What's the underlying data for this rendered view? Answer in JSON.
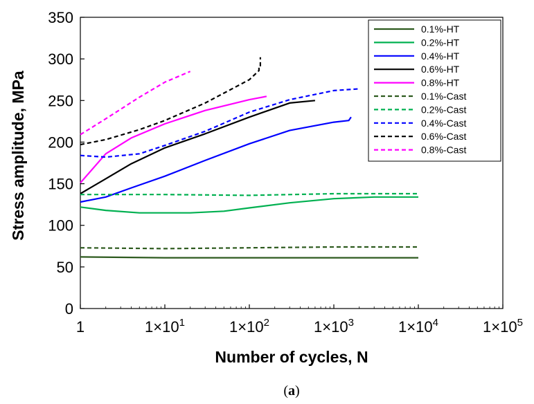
{
  "caption": {
    "open": "(",
    "letter": "a",
    "close": ")"
  },
  "chart_data": {
    "type": "line",
    "xlabel": "Number of cycles, N",
    "ylabel": "Stress amplitude, MPa",
    "xscale": "log",
    "xlim": [
      1,
      100000
    ],
    "ylim": [
      0,
      350
    ],
    "x_tick_labels": [
      "1",
      "1×10",
      "1×10",
      "1×10",
      "1×10",
      "1×10"
    ],
    "x_tick_exponents": [
      "",
      "1",
      "2",
      "3",
      "4",
      "5"
    ],
    "y_ticks": [
      0,
      50,
      100,
      150,
      200,
      250,
      300,
      350
    ],
    "grid": false,
    "legend_position": "top-right",
    "series": [
      {
        "name": "0.1%-HT",
        "color": "#2d5a1e",
        "dash": "solid",
        "x": [
          1,
          10,
          100,
          1000,
          10000
        ],
        "y": [
          62,
          61,
          61,
          61,
          61
        ]
      },
      {
        "name": "0.2%-HT",
        "color": "#00b050",
        "dash": "solid",
        "x": [
          1,
          2,
          5,
          20,
          50,
          100,
          300,
          1000,
          3000,
          10000
        ],
        "y": [
          122,
          118,
          115,
          115,
          117,
          121,
          127,
          132,
          134,
          134
        ]
      },
      {
        "name": "0.4%-HT",
        "color": "#0000ff",
        "dash": "solid",
        "x": [
          1,
          2,
          4,
          10,
          30,
          100,
          300,
          1000,
          1500,
          1600
        ],
        "y": [
          128,
          134,
          145,
          159,
          178,
          198,
          214,
          224,
          226,
          230
        ]
      },
      {
        "name": "0.6%-HT",
        "color": "#000000",
        "dash": "solid",
        "x": [
          1,
          2,
          4,
          10,
          30,
          100,
          300,
          600
        ],
        "y": [
          138,
          156,
          174,
          193,
          210,
          230,
          247,
          250
        ]
      },
      {
        "name": "0.8%-HT",
        "color": "#ff00ff",
        "dash": "solid",
        "x": [
          1,
          2,
          4,
          10,
          30,
          100,
          160
        ],
        "y": [
          151,
          186,
          205,
          222,
          238,
          251,
          255
        ]
      },
      {
        "name": "0.1%-Cast",
        "color": "#2d5a1e",
        "dash": "dashed",
        "x": [
          1,
          10,
          100,
          1000,
          10000
        ],
        "y": [
          73,
          72,
          73,
          74,
          74
        ]
      },
      {
        "name": "0.2%-Cast",
        "color": "#00b050",
        "dash": "dashed",
        "x": [
          1,
          10,
          100,
          1000,
          10000
        ],
        "y": [
          137,
          137,
          136,
          138,
          138
        ]
      },
      {
        "name": "0.4%-Cast",
        "color": "#0000ff",
        "dash": "dashed",
        "x": [
          1,
          2,
          5,
          10,
          30,
          100,
          300,
          1000,
          2000
        ],
        "y": [
          184,
          182,
          186,
          196,
          213,
          236,
          251,
          262,
          264
        ]
      },
      {
        "name": "0.6%-Cast",
        "color": "#000000",
        "dash": "dashed",
        "x": [
          1,
          2,
          5,
          10,
          30,
          100,
          130,
          130,
          135,
          135
        ],
        "y": [
          197,
          203,
          215,
          226,
          247,
          275,
          286,
          290,
          290,
          302
        ]
      },
      {
        "name": "0.8%-Cast",
        "color": "#ff00ff",
        "dash": "dashed",
        "x": [
          1,
          2,
          5,
          10,
          20
        ],
        "y": [
          209,
          228,
          254,
          272,
          285
        ]
      }
    ]
  }
}
